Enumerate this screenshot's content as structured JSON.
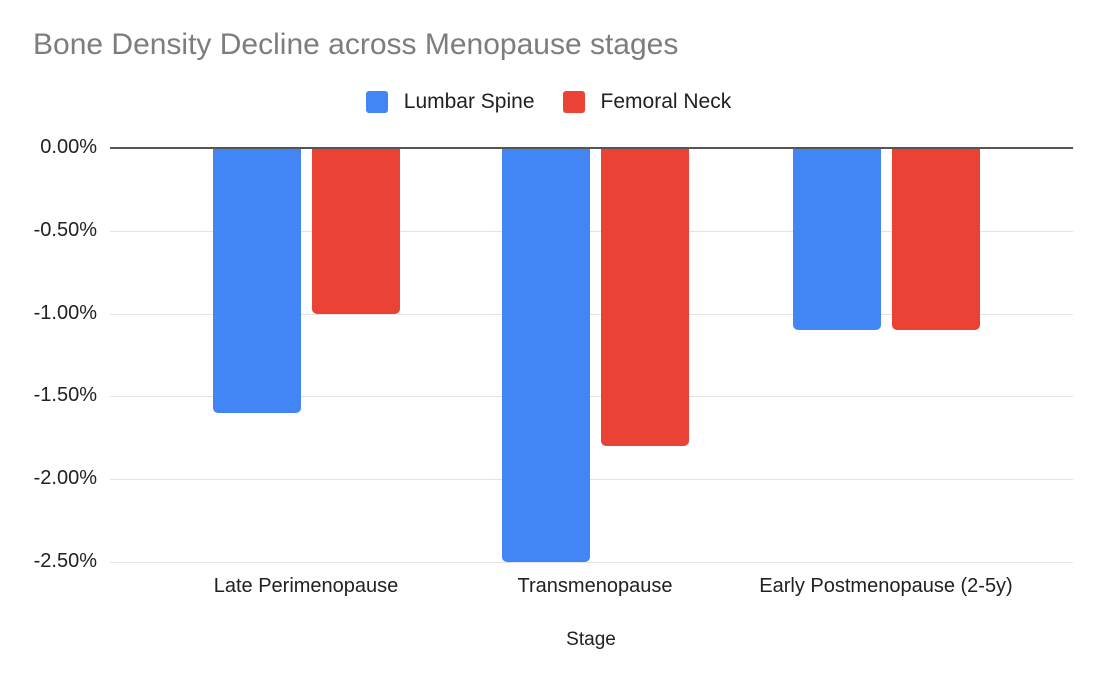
{
  "chart_data": {
    "type": "bar",
    "title": "Bone Density Decline across Menopause stages",
    "xlabel": "Stage",
    "ylabel": "",
    "categories": [
      "Late Perimenopause",
      "Transmenopause",
      "Early Postmenopause (2-5y)"
    ],
    "series": [
      {
        "name": "Lumbar Spine",
        "color": "#4285F4",
        "values": [
          -1.6,
          -2.5,
          -1.1
        ]
      },
      {
        "name": "Femoral Neck",
        "color": "#EA4335",
        "values": [
          -1.0,
          -1.8,
          -1.1
        ]
      }
    ],
    "y_ticks": [
      {
        "label": "0.00%",
        "value": 0
      },
      {
        "label": "-0.50%",
        "value": -0.5
      },
      {
        "label": "-1.00%",
        "value": -1.0
      },
      {
        "label": "-1.50%",
        "value": -1.5
      },
      {
        "label": "-2.00%",
        "value": -2.0
      },
      {
        "label": "-2.50%",
        "value": -2.5
      }
    ],
    "ylim": [
      -2.5,
      0
    ],
    "grid": true,
    "legend_position": "top",
    "value_format": "percent"
  },
  "colors": {
    "title_text": "#7d7d7d",
    "axis_text": "#212121",
    "zero_line": "#555555",
    "gridline": "#e3e3e3",
    "background": "#ffffff"
  }
}
